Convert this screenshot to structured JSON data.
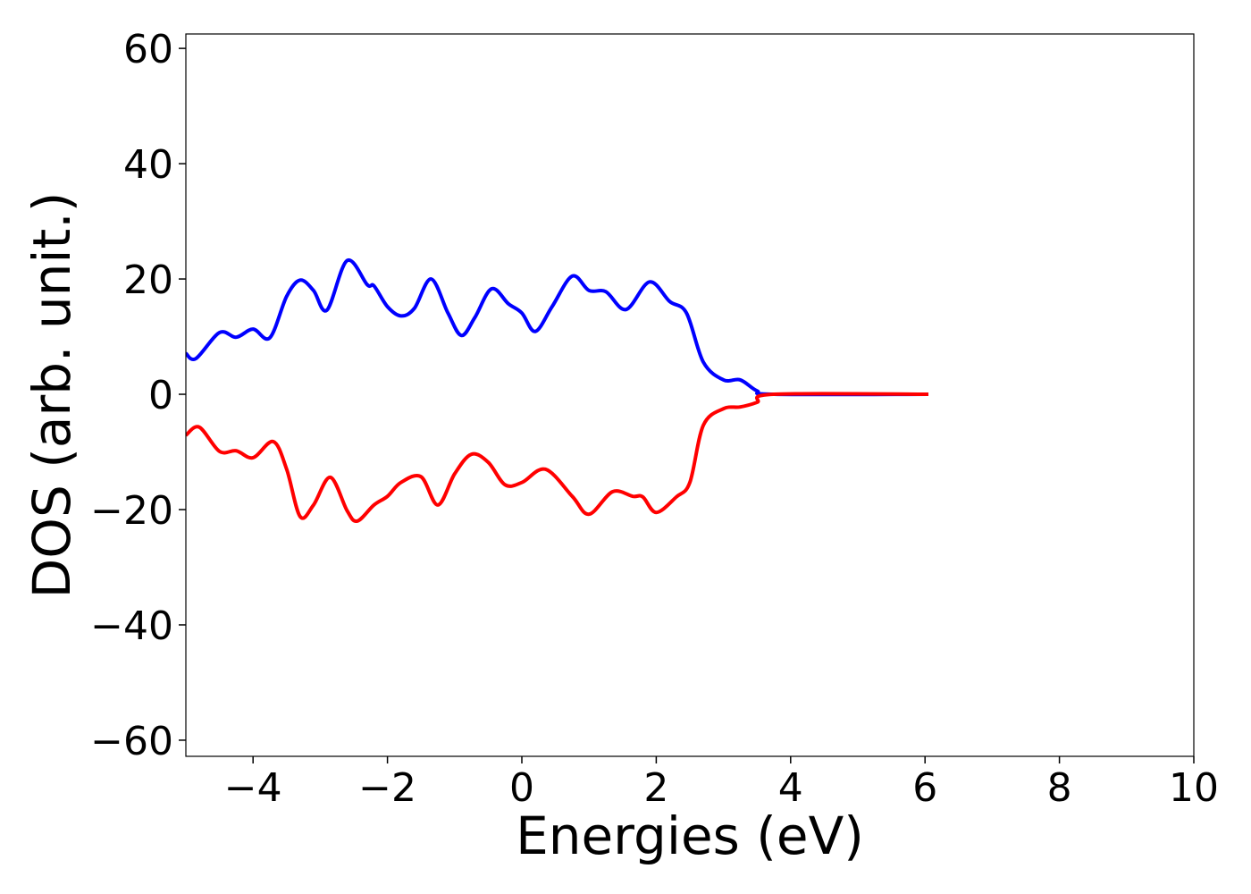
{
  "chart_data": {
    "type": "line",
    "xlabel": "Energies (eV)",
    "ylabel": "DOS (arb. unit.)",
    "xlim": [
      -5,
      10
    ],
    "ylim": [
      -62.8,
      62.5
    ],
    "xticks": [
      {
        "value": -4,
        "label": "−4"
      },
      {
        "value": -2,
        "label": "−2"
      },
      0,
      2,
      4,
      6,
      8,
      10
    ],
    "yticks": [
      {
        "value": -60,
        "label": "−60"
      },
      {
        "value": -40,
        "label": "−40"
      },
      {
        "value": -20,
        "label": "−20"
      },
      0,
      20,
      40,
      60
    ],
    "grid": false,
    "series": [
      {
        "color": "#0000ff",
        "x": [
          -5,
          -4.85,
          -4.5,
          -4.25,
          -4,
          -3.75,
          -3.5,
          -3.3,
          -3.1,
          -2.9,
          -2.6,
          -2.3,
          -2.2,
          -2,
          -1.8,
          -1.6,
          -1.35,
          -1.1,
          -0.9,
          -0.7,
          -0.45,
          -0.2,
          0,
          0.2,
          0.45,
          0.75,
          1,
          1.25,
          1.55,
          1.9,
          2.2,
          2.45,
          2.7,
          3,
          3.25,
          3.5,
          3.75,
          6.05
        ],
        "values": [
          7.1,
          6.2,
          10.7,
          9.9,
          11.3,
          9.8,
          17,
          19.8,
          18,
          14.6,
          23.2,
          19,
          18.8,
          15.2,
          13.6,
          14.9,
          20,
          14.1,
          10.2,
          13.3,
          18.3,
          15.7,
          14.1,
          10.9,
          15.2,
          20.5,
          18,
          17.8,
          14.7,
          19.5,
          16.1,
          14.1,
          5.6,
          2.5,
          2.5,
          0.6,
          0,
          0
        ]
      },
      {
        "color": "#ff0000",
        "x": [
          -5,
          -4.8,
          -4.5,
          -4.25,
          -4,
          -3.7,
          -3.5,
          -3.3,
          -3.1,
          -2.85,
          -2.6,
          -2.45,
          -2.2,
          -2,
          -1.8,
          -1.5,
          -1.25,
          -1,
          -0.75,
          -0.5,
          -0.25,
          0,
          0.35,
          0.75,
          1,
          1.35,
          1.65,
          1.8,
          2,
          2.3,
          2.5,
          2.7,
          3,
          3.25,
          3.5,
          3.75,
          6.05
        ],
        "values": [
          -7.1,
          -5.7,
          -9.9,
          -9.8,
          -11,
          -8.2,
          -13,
          -21.2,
          -19.2,
          -14.4,
          -20.2,
          -22,
          -19.2,
          -17.7,
          -15.3,
          -14.3,
          -19.2,
          -13.8,
          -10.4,
          -11.8,
          -15.7,
          -15.3,
          -13,
          -17.7,
          -20.8,
          -16.9,
          -17.7,
          -17.8,
          -20.5,
          -17.8,
          -15.3,
          -5.4,
          -2.5,
          -2.2,
          -1.4,
          0,
          0
        ]
      }
    ]
  }
}
